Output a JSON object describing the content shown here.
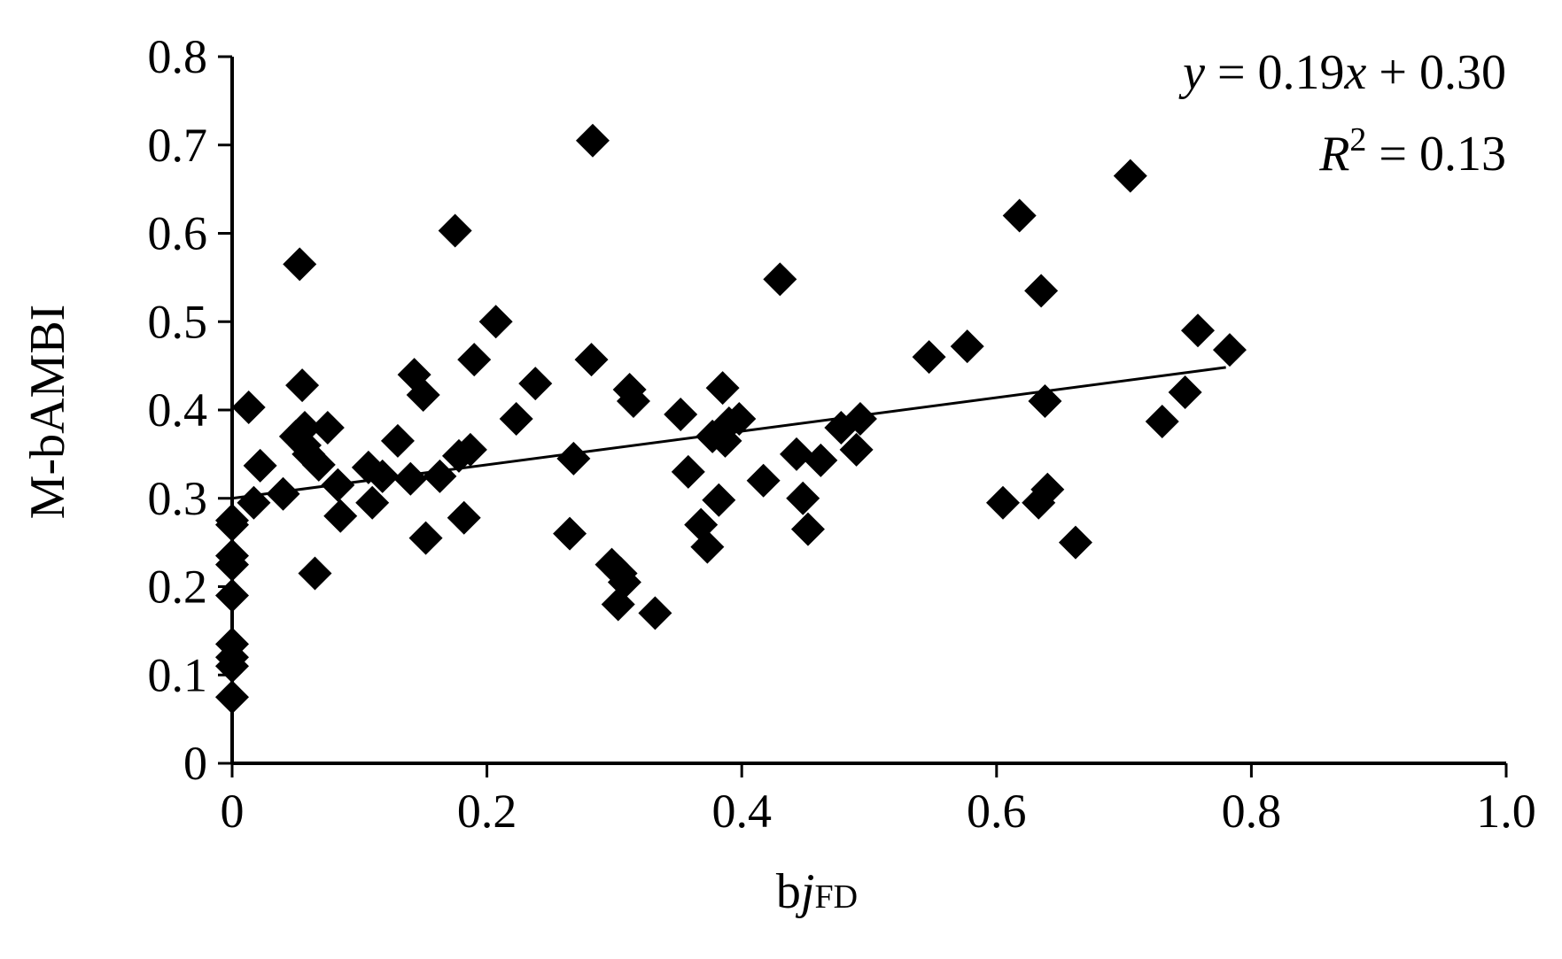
{
  "chart_data": {
    "type": "scatter",
    "title": "",
    "xlabel_main": "b",
    "xlabel_italic": "j",
    "xlabel_sub": "FD",
    "ylabel": "M-bAMBI",
    "xlim": [
      0,
      1.0
    ],
    "ylim": [
      0,
      0.8
    ],
    "x_ticks": [
      0,
      0.2,
      0.4,
      0.6,
      0.8,
      1.0
    ],
    "x_tick_labels": [
      "0",
      "0.2",
      "0.4",
      "0.6",
      "0.8",
      "1.0"
    ],
    "y_ticks": [
      0,
      0.1,
      0.2,
      0.3,
      0.4,
      0.5,
      0.6,
      0.7,
      0.8
    ],
    "y_tick_labels": [
      "0",
      "0.1",
      "0.2",
      "0.3",
      "0.4",
      "0.5",
      "0.6",
      "0.7",
      "0.8"
    ],
    "grid": false,
    "legend": "none",
    "marker": "diamond",
    "equation": {
      "y": "y",
      "eq_part1": " = 0.19",
      "x": "x",
      "eq_part2": " + 0.30",
      "r": "R",
      "r_sup": "2",
      "r_rest": " = 0.13"
    },
    "trendline": {
      "slope": 0.19,
      "intercept": 0.3,
      "x_from": 0,
      "x_to": 0.78
    },
    "series": [
      {
        "x": [
          0,
          0,
          0,
          0,
          0,
          0,
          0,
          0,
          0,
          0.013,
          0.017,
          0.022,
          0.04,
          0.05,
          0.053,
          0.055,
          0.057,
          0.057,
          0.06,
          0.065,
          0.068,
          0.075,
          0.083,
          0.085,
          0.107,
          0.11,
          0.118,
          0.13,
          0.14,
          0.143,
          0.15,
          0.152,
          0.163,
          0.175,
          0.178,
          0.182,
          0.187,
          0.19,
          0.207,
          0.223,
          0.238,
          0.265,
          0.268,
          0.282,
          0.283,
          0.298,
          0.303,
          0.305,
          0.308,
          0.312,
          0.315,
          0.332,
          0.352,
          0.358,
          0.368,
          0.373,
          0.377,
          0.382,
          0.385,
          0.387,
          0.39,
          0.398,
          0.417,
          0.43,
          0.443,
          0.448,
          0.452,
          0.462,
          0.478,
          0.49,
          0.493,
          0.547,
          0.577,
          0.605,
          0.618,
          0.633,
          0.635,
          0.638,
          0.64,
          0.662,
          0.705,
          0.73,
          0.748,
          0.758,
          0.783
        ],
        "y": [
          0.075,
          0.11,
          0.12,
          0.135,
          0.19,
          0.225,
          0.235,
          0.27,
          0.275,
          0.403,
          0.295,
          0.337,
          0.305,
          0.37,
          0.565,
          0.428,
          0.36,
          0.38,
          0.35,
          0.215,
          0.338,
          0.38,
          0.315,
          0.28,
          0.335,
          0.295,
          0.325,
          0.365,
          0.322,
          0.44,
          0.417,
          0.255,
          0.325,
          0.603,
          0.348,
          0.278,
          0.355,
          0.457,
          0.5,
          0.39,
          0.43,
          0.26,
          0.345,
          0.457,
          0.705,
          0.225,
          0.18,
          0.215,
          0.205,
          0.423,
          0.41,
          0.17,
          0.395,
          0.33,
          0.27,
          0.245,
          0.37,
          0.298,
          0.425,
          0.365,
          0.385,
          0.39,
          0.32,
          0.548,
          0.35,
          0.3,
          0.265,
          0.343,
          0.38,
          0.355,
          0.39,
          0.46,
          0.472,
          0.295,
          0.62,
          0.295,
          0.535,
          0.41,
          0.31,
          0.25,
          0.665,
          0.387,
          0.42,
          0.49,
          0.468
        ]
      }
    ]
  }
}
